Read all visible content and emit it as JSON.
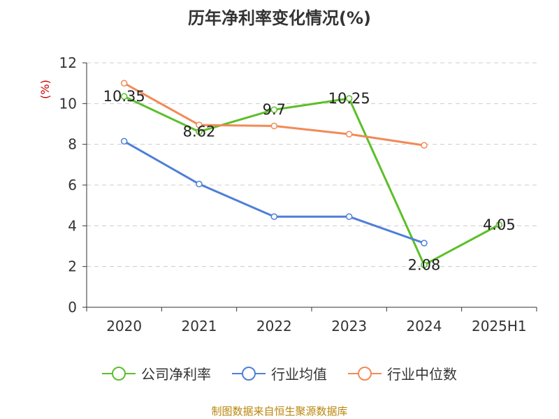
{
  "chart_data": {
    "type": "line",
    "title": "历年净利率变化情况(%)",
    "ylabel": "(%)",
    "categories": [
      "2020",
      "2021",
      "2022",
      "2023",
      "2024",
      "2025H1"
    ],
    "ylim": [
      0,
      12
    ],
    "yticks": [
      "0",
      "2",
      "4",
      "6",
      "8",
      "10",
      "12"
    ],
    "grid": true,
    "legend_position": "bottom",
    "series": [
      {
        "name": "公司净利率",
        "color": "#5cbf2a",
        "values": [
          10.35,
          8.62,
          9.7,
          10.25,
          2.08,
          4.05
        ],
        "labels": [
          "10.35",
          "8.62",
          "9.7",
          "10.25",
          "2.08",
          "4.05"
        ]
      },
      {
        "name": "行业均值",
        "color": "#4e7fd8",
        "values": [
          8.15,
          6.05,
          4.45,
          4.45,
          3.15,
          null
        ]
      },
      {
        "name": "行业中位数",
        "color": "#f28a57",
        "values": [
          11.0,
          8.95,
          8.9,
          8.5,
          7.95,
          null
        ]
      }
    ]
  },
  "source": "制图数据来自恒生聚源数据库"
}
